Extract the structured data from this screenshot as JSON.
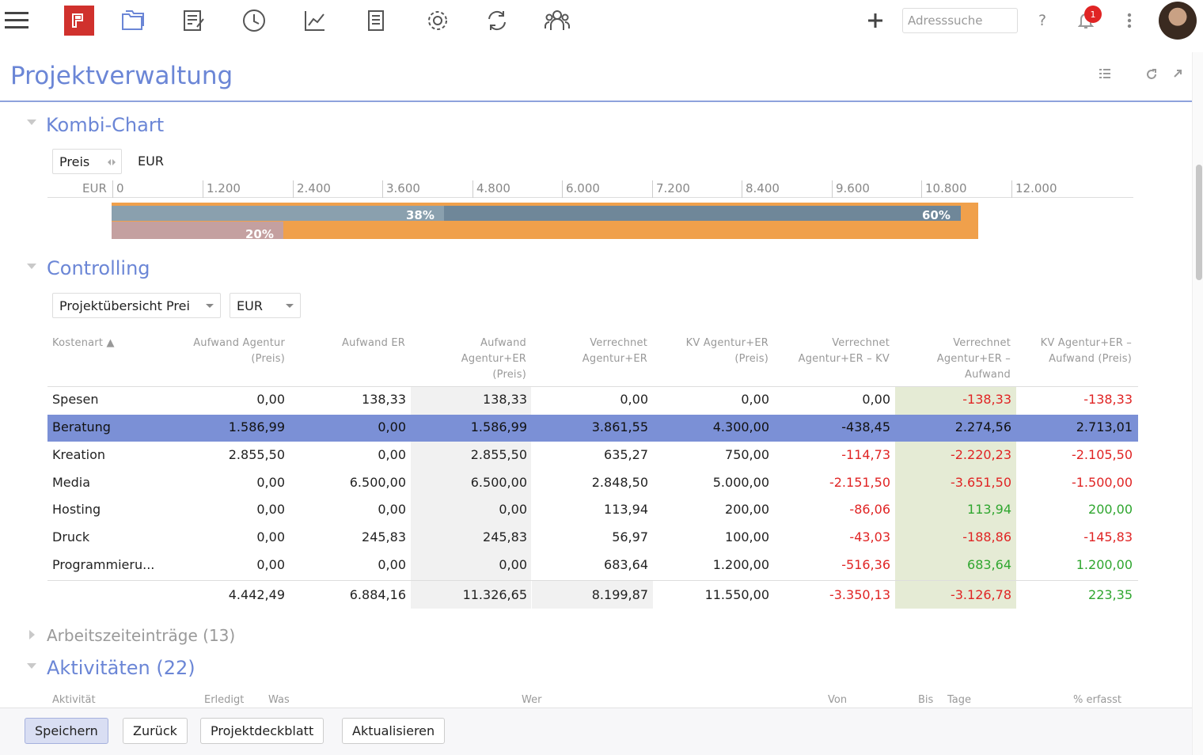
{
  "header": {
    "search_placeholder": "Adresssuche",
    "help_label": "?",
    "notification_count": "1",
    "icons": [
      "menu-icon",
      "folders-icon",
      "edit-list-icon",
      "clock-icon",
      "chart-line-icon",
      "documents-icon",
      "gear-icon",
      "sync-icon",
      "team-icon",
      "plus-icon",
      "help-icon",
      "bell-icon",
      "more-icon"
    ]
  },
  "page": {
    "title": "Projektverwaltung"
  },
  "kombi": {
    "title": "Kombi-Chart",
    "measure": "Preis",
    "currency": "EUR",
    "axis_unit": "EUR",
    "ticks": [
      "0",
      "1.200",
      "2.400",
      "3.600",
      "4.800",
      "6.000",
      "7.200",
      "8.400",
      "9.600",
      "10.800",
      "12.000"
    ],
    "bar_labels": {
      "a": "38%",
      "b": "60%",
      "c": "20%"
    },
    "colors": {
      "grey": "#6f8799",
      "light_grey": "#8aa0ae",
      "orange": "#f0a04b",
      "rose": "#c4a0a0"
    }
  },
  "controlling": {
    "title": "Controlling",
    "view_select": "Projektübersicht Prei",
    "currency_select": "EUR",
    "columns": [
      [
        "Kostenart ▲"
      ],
      [
        "Aufwand Agentur",
        "(Preis)"
      ],
      [
        "Aufwand ER"
      ],
      [
        "Aufwand",
        "Agentur+ER",
        "(Preis)"
      ],
      [
        "Verrechnet",
        "Agentur+ER"
      ],
      [
        "KV Agentur+ER",
        "(Preis)"
      ],
      [
        "Verrechnet",
        "Agentur+ER – KV"
      ],
      [
        "Verrechnet",
        "Agentur+ER –",
        "Aufwand"
      ],
      [
        "KV Agentur+ER –",
        "Aufwand (Preis)"
      ]
    ],
    "rows": [
      [
        "Spesen",
        "0,00",
        "138,33",
        "138,33",
        "0,00",
        "0,00",
        "0,00",
        "-138,33",
        "-138,33"
      ],
      [
        "Beratung",
        "1.586,99",
        "0,00",
        "1.586,99",
        "3.861,55",
        "4.300,00",
        "-438,45",
        "2.274,56",
        "2.713,01"
      ],
      [
        "Kreation",
        "2.855,50",
        "0,00",
        "2.855,50",
        "635,27",
        "750,00",
        "-114,73",
        "-2.220,23",
        "-2.105,50"
      ],
      [
        "Media",
        "0,00",
        "6.500,00",
        "6.500,00",
        "2.848,50",
        "5.000,00",
        "-2.151,50",
        "-3.651,50",
        "-1.500,00"
      ],
      [
        "Hosting",
        "0,00",
        "0,00",
        "0,00",
        "113,94",
        "200,00",
        "-86,06",
        "113,94",
        "200,00"
      ],
      [
        "Druck",
        "0,00",
        "245,83",
        "245,83",
        "56,97",
        "100,00",
        "-43,03",
        "-188,86",
        "-145,83"
      ],
      [
        "Programmieru...",
        "0,00",
        "0,00",
        "0,00",
        "683,64",
        "1.200,00",
        "-516,36",
        "683,64",
        "1.200,00"
      ]
    ],
    "totals": [
      "",
      "4.442,49",
      "6.884,16",
      "11.326,65",
      "8.199,87",
      "11.550,00",
      "-3.350,13",
      "-3.126,78",
      "223,35"
    ]
  },
  "arbeitszeit": {
    "title": "Arbeitszeiteinträge (13)"
  },
  "aktivitaeten": {
    "title": "Aktivitäten (22)",
    "columns": [
      "Aktivität",
      "Erledigt",
      "Was",
      "Wer",
      "Von",
      "Bis",
      "Tage",
      "% erfasst"
    ]
  },
  "footer": {
    "save": "Speichern",
    "back": "Zurück",
    "cover": "Projektdeckblatt",
    "refresh": "Aktualisieren"
  }
}
